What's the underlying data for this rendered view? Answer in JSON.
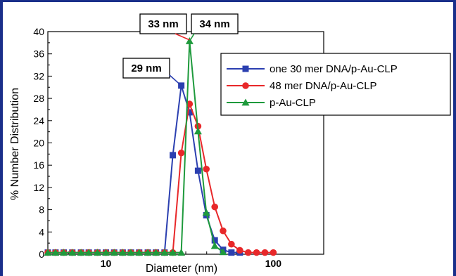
{
  "chart_data": {
    "type": "line",
    "xscale": "log",
    "xlim": [
      4.5,
      200
    ],
    "ylim": [
      0,
      40
    ],
    "xlabel": "Diameter (nm)",
    "ylabel": "% Number Distribution",
    "xticks": [
      10,
      100
    ],
    "xtick_labels": [
      "10",
      "100"
    ],
    "yticks": [
      0,
      4,
      8,
      12,
      16,
      20,
      24,
      28,
      32,
      36,
      40
    ],
    "ytick_labels": [
      "0",
      "4",
      "8",
      "12",
      "16",
      "20",
      "24",
      "28",
      "32",
      "36",
      "40"
    ],
    "legend_position": "top-right",
    "series": [
      {
        "name": "one 30 mer DNA/p-Au-CLP",
        "color": "#2b3fb0",
        "marker": "square",
        "x": [
          4.5,
          5.0,
          5.6,
          6.3,
          7.1,
          7.9,
          8.9,
          10.0,
          11.2,
          12.6,
          14.1,
          15.8,
          17.8,
          19.9,
          22.4,
          25.1,
          28.2,
          31.6,
          35.5,
          39.8,
          44.7,
          50.1,
          56.2,
          63.1
        ],
        "y": [
          0.3,
          0.3,
          0.3,
          0.3,
          0.3,
          0.3,
          0.3,
          0.3,
          0.3,
          0.3,
          0.3,
          0.3,
          0.3,
          0.3,
          0.3,
          17.8,
          30.3,
          25.5,
          15.0,
          7.0,
          2.5,
          0.8,
          0.3,
          0.3
        ]
      },
      {
        "name": "48 mer DNA/p-Au-CLP",
        "color": "#e8282a",
        "marker": "circle",
        "x": [
          4.5,
          5.0,
          5.6,
          6.3,
          7.1,
          7.9,
          8.9,
          10.0,
          11.2,
          12.6,
          14.1,
          15.8,
          17.8,
          19.9,
          22.4,
          25.1,
          28.2,
          31.6,
          35.5,
          39.8,
          44.7,
          50.1,
          56.2,
          63.1,
          70.8,
          79.4,
          89.1,
          100.0
        ],
        "y": [
          0.3,
          0.3,
          0.3,
          0.3,
          0.3,
          0.3,
          0.3,
          0.3,
          0.3,
          0.3,
          0.3,
          0.3,
          0.3,
          0.3,
          0.3,
          0.3,
          18.2,
          27.0,
          23.0,
          15.3,
          8.5,
          4.2,
          1.8,
          0.7,
          0.3,
          0.3,
          0.3,
          0.3
        ]
      },
      {
        "name": "p-Au-CLP",
        "color": "#1e9a3c",
        "marker": "triangle",
        "x": [
          4.5,
          5.0,
          5.6,
          6.3,
          7.1,
          7.9,
          8.9,
          10.0,
          11.2,
          12.6,
          14.1,
          15.8,
          17.8,
          19.9,
          22.4,
          25.1,
          28.2,
          31.6,
          35.5,
          39.8,
          44.7,
          50.1
        ],
        "y": [
          0.3,
          0.3,
          0.3,
          0.3,
          0.3,
          0.3,
          0.3,
          0.3,
          0.3,
          0.3,
          0.3,
          0.3,
          0.3,
          0.3,
          0.3,
          0.3,
          0.3,
          38.3,
          22.1,
          7.5,
          1.5,
          0.4
        ]
      }
    ],
    "annotations": [
      {
        "text": "29 nm",
        "target_x": 28.2,
        "target_y": 30.3,
        "color": "#2b3fb0"
      },
      {
        "text": "33 nm",
        "target_x": 31.6,
        "target_y": 38.5,
        "color": "#e8282a"
      },
      {
        "text": "34 nm",
        "target_x": 31.6,
        "target_y": 38.3,
        "color": "#1e9a3c"
      }
    ]
  }
}
